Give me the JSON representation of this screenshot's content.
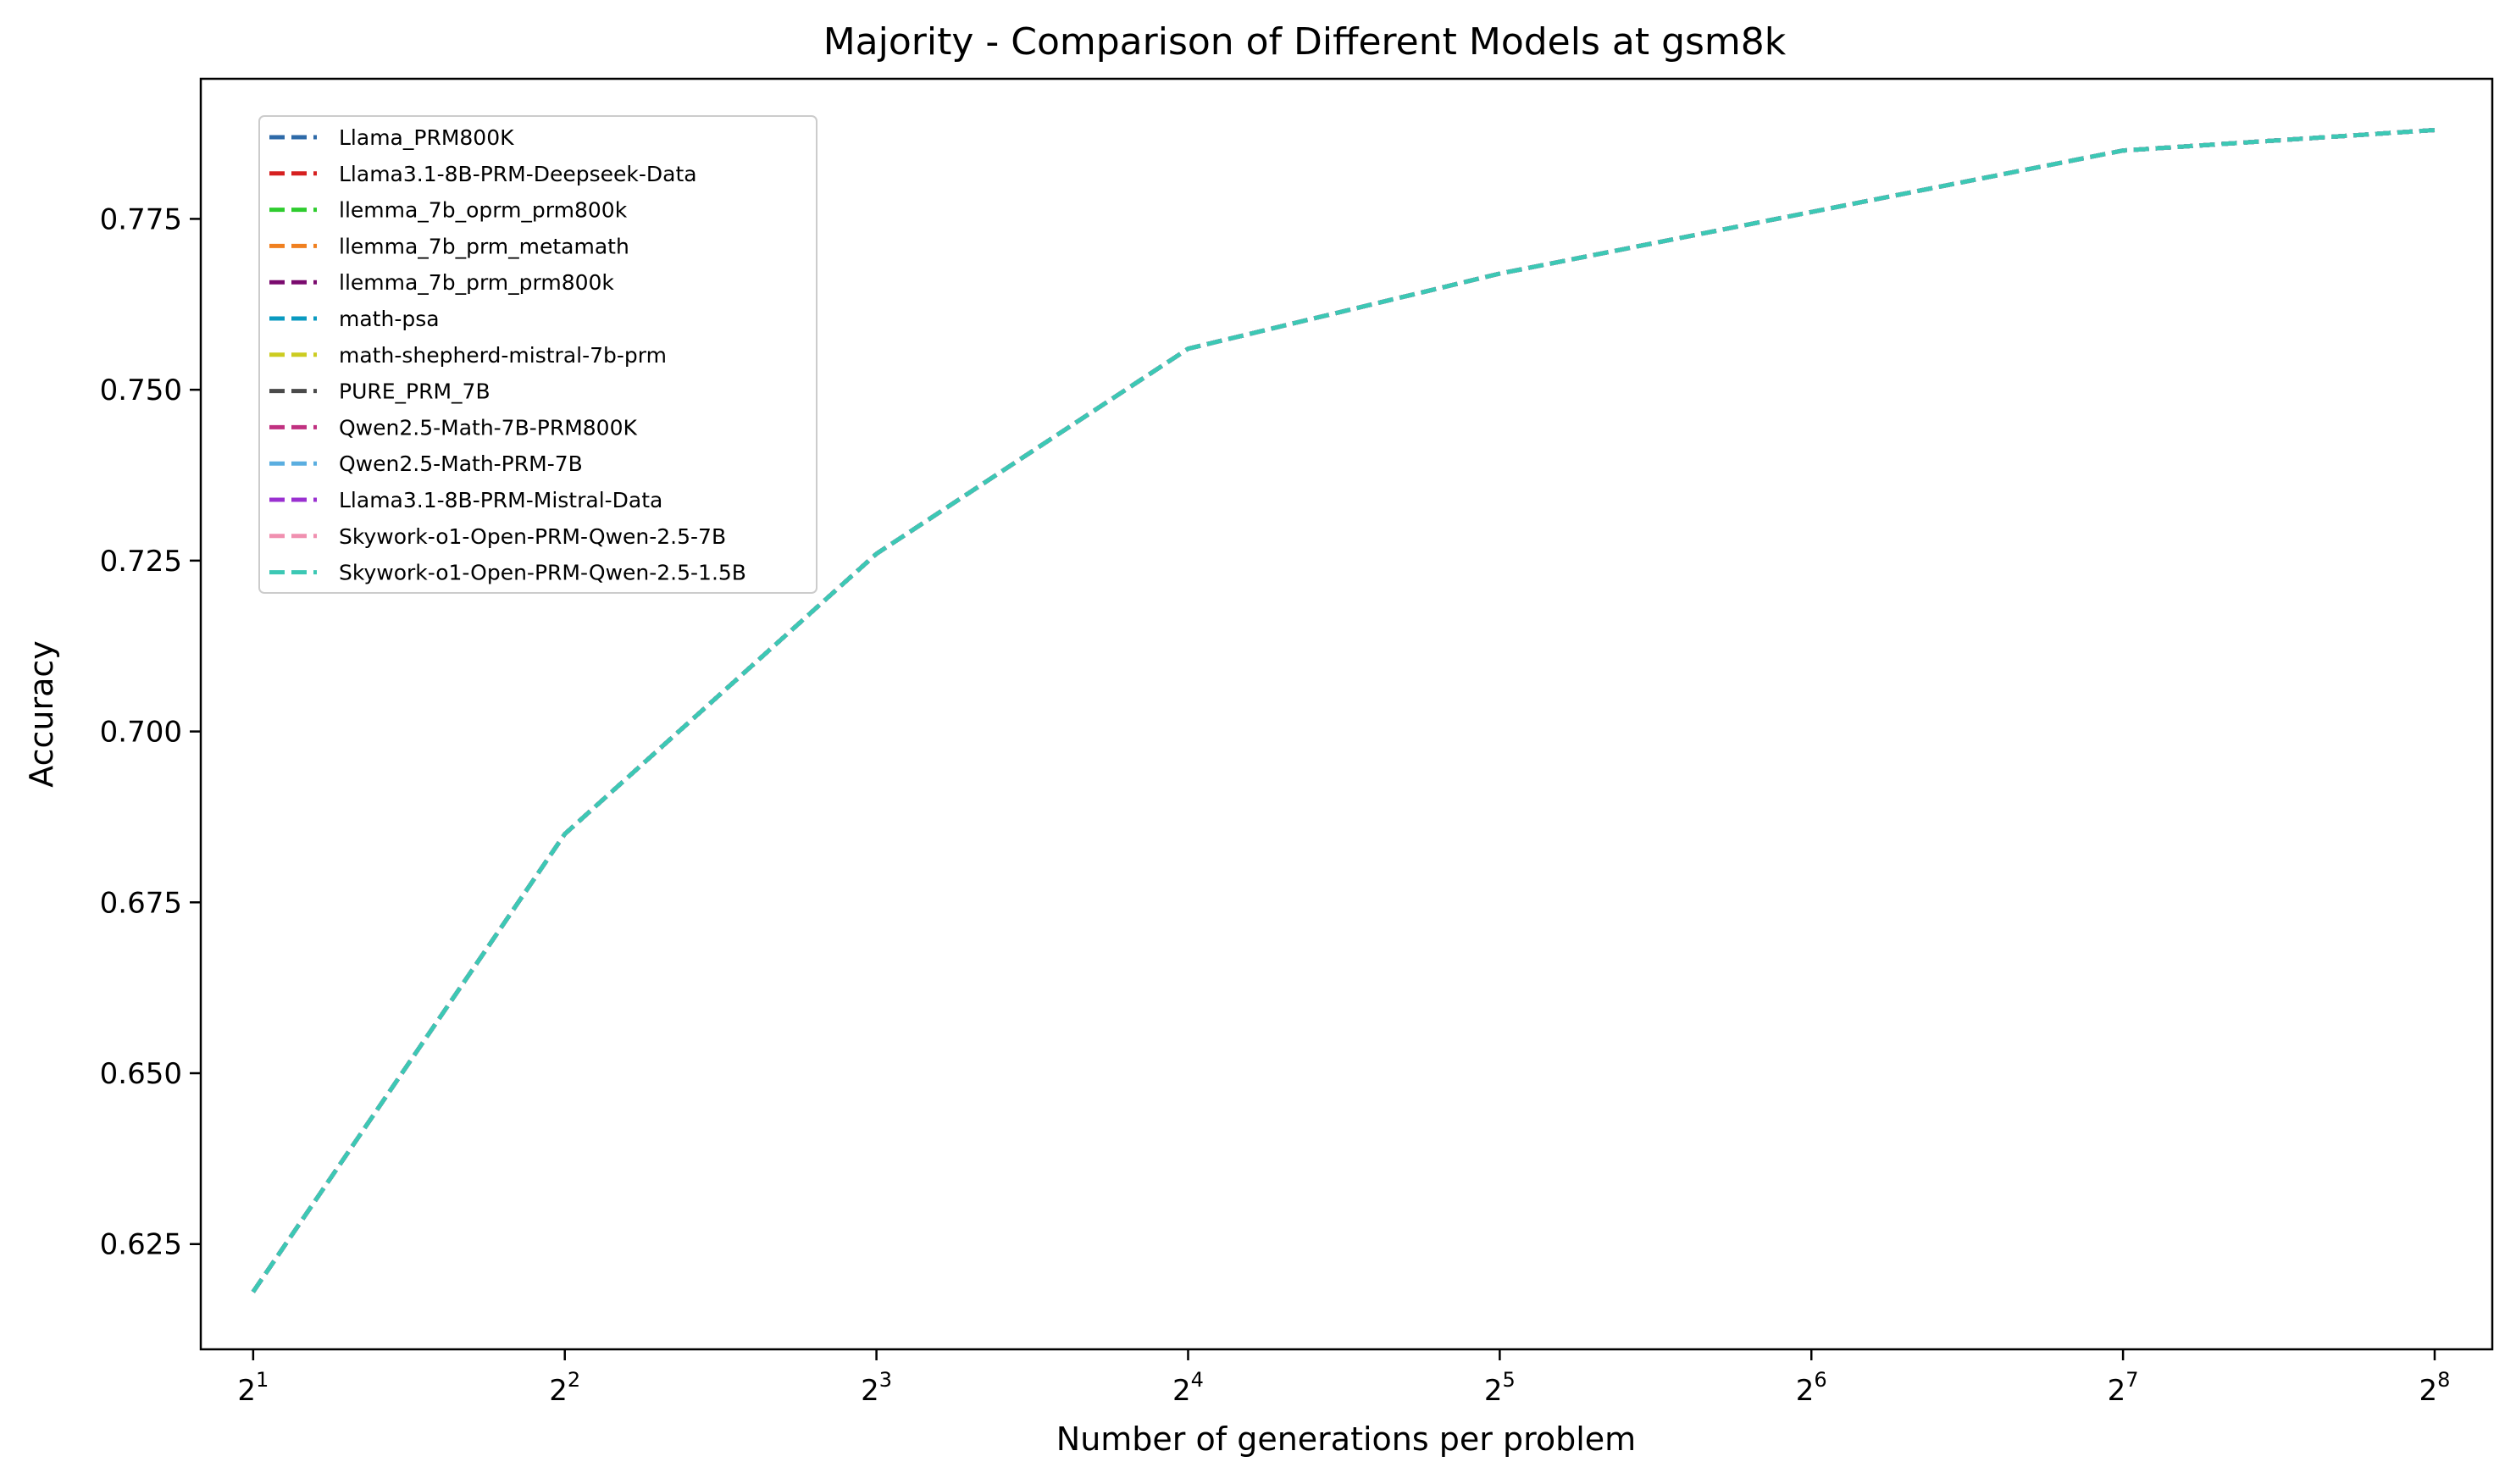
{
  "chart_data": {
    "type": "line",
    "title": "Majority - Comparison of Different Models at gsm8k",
    "xlabel": "Number of generations per problem",
    "ylabel": "Accuracy",
    "x_scale": "log2",
    "x": [
      2,
      4,
      8,
      16,
      32,
      64,
      128,
      256
    ],
    "x_ticks": [
      {
        "value": 2,
        "base": "2",
        "exp": "1"
      },
      {
        "value": 4,
        "base": "2",
        "exp": "2"
      },
      {
        "value": 8,
        "base": "2",
        "exp": "3"
      },
      {
        "value": 16,
        "base": "2",
        "exp": "4"
      },
      {
        "value": 32,
        "base": "2",
        "exp": "5"
      },
      {
        "value": 64,
        "base": "2",
        "exp": "6"
      },
      {
        "value": 128,
        "base": "2",
        "exp": "7"
      },
      {
        "value": 256,
        "base": "2",
        "exp": "8"
      }
    ],
    "xlim": [
      1.78,
      291
    ],
    "ylim": [
      0.6096,
      0.7955
    ],
    "y_ticks": [
      "0.625",
      "0.650",
      "0.675",
      "0.700",
      "0.725",
      "0.750",
      "0.775"
    ],
    "grid": false,
    "legend_position": "upper-left",
    "line_style": "dashed",
    "series": [
      {
        "name": "Llama_PRM800K",
        "color": "#2e6aa8",
        "values": [
          0.618,
          0.685,
          0.726,
          0.756,
          0.767,
          0.776,
          0.785,
          0.788
        ]
      },
      {
        "name": "Llama3.1-8B-PRM-Deepseek-Data",
        "color": "#d62020",
        "values": [
          0.618,
          0.685,
          0.726,
          0.756,
          0.767,
          0.776,
          0.785,
          0.788
        ]
      },
      {
        "name": "llemma_7b_oprm_prm800k",
        "color": "#2ecc2e",
        "values": [
          0.618,
          0.685,
          0.726,
          0.756,
          0.767,
          0.776,
          0.785,
          0.788
        ]
      },
      {
        "name": "llemma_7b_prm_metamath",
        "color": "#f08020",
        "values": [
          0.618,
          0.685,
          0.726,
          0.756,
          0.767,
          0.776,
          0.785,
          0.788
        ]
      },
      {
        "name": "llemma_7b_prm_prm800k",
        "color": "#7a0a6e",
        "values": [
          0.618,
          0.685,
          0.726,
          0.756,
          0.767,
          0.776,
          0.785,
          0.788
        ]
      },
      {
        "name": "math-psa",
        "color": "#0a9ac0",
        "values": [
          0.618,
          0.685,
          0.726,
          0.756,
          0.767,
          0.776,
          0.785,
          0.788
        ]
      },
      {
        "name": "math-shepherd-mistral-7b-prm",
        "color": "#cccc20",
        "values": [
          0.618,
          0.685,
          0.726,
          0.756,
          0.767,
          0.776,
          0.785,
          0.788
        ]
      },
      {
        "name": "PURE_PRM_7B",
        "color": "#4a4a4a",
        "values": [
          0.618,
          0.685,
          0.726,
          0.756,
          0.767,
          0.776,
          0.785,
          0.788
        ]
      },
      {
        "name": "Qwen2.5-Math-7B-PRM800K",
        "color": "#c03080",
        "values": [
          0.618,
          0.685,
          0.726,
          0.756,
          0.767,
          0.776,
          0.785,
          0.788
        ]
      },
      {
        "name": "Qwen2.5-Math-PRM-7B",
        "color": "#5aaee0",
        "values": [
          0.618,
          0.685,
          0.726,
          0.756,
          0.767,
          0.776,
          0.785,
          0.788
        ]
      },
      {
        "name": "Llama3.1-8B-PRM-Mistral-Data",
        "color": "#9a30d0",
        "values": [
          0.618,
          0.685,
          0.726,
          0.756,
          0.767,
          0.776,
          0.785,
          0.788
        ]
      },
      {
        "name": "Skywork-o1-Open-PRM-Qwen-2.5-7B",
        "color": "#f090b0",
        "values": [
          0.618,
          0.685,
          0.726,
          0.756,
          0.767,
          0.776,
          0.785,
          0.788
        ]
      },
      {
        "name": "Skywork-o1-Open-PRM-Qwen-2.5-1.5B",
        "color": "#3cc8b4",
        "values": [
          0.618,
          0.685,
          0.726,
          0.756,
          0.767,
          0.776,
          0.785,
          0.788
        ]
      }
    ]
  }
}
